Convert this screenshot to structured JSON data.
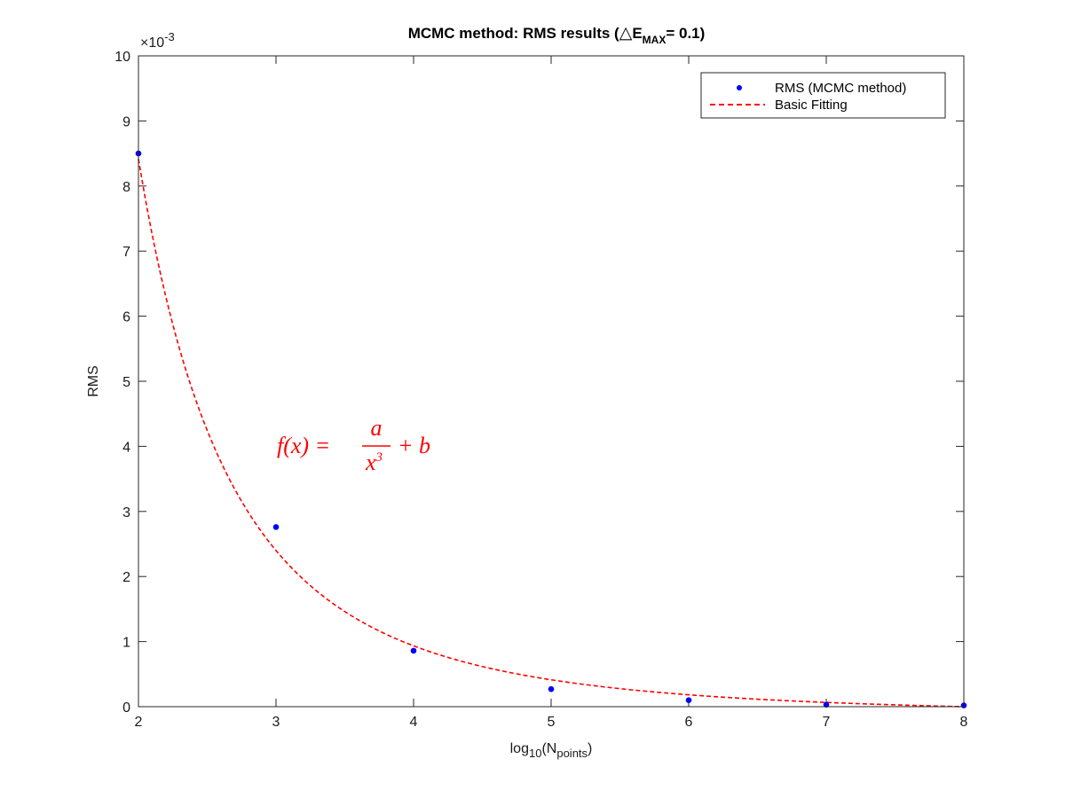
{
  "chart_data": {
    "type": "scatter",
    "title": {
      "prefix": "MCMC method: RMS results (",
      "symbol": "△",
      "main": "E",
      "sub": "MAX",
      "suffix": "= 0.1)"
    },
    "xlabel": {
      "main": "log",
      "sub1": "10",
      "mid": "(N",
      "sub2": "points",
      "end": ")"
    },
    "ylabel": "RMS",
    "exponent_label": {
      "base": "×10",
      "exp": "-3"
    },
    "xlim": [
      2,
      8
    ],
    "ylim": [
      0,
      0.01
    ],
    "xticks": [
      2,
      3,
      4,
      5,
      6,
      7,
      8
    ],
    "xtick_labels": [
      "2",
      "3",
      "4",
      "5",
      "6",
      "7",
      "8"
    ],
    "yticks": [
      0,
      0.001,
      0.002,
      0.003,
      0.004,
      0.005,
      0.006,
      0.007,
      0.008,
      0.009,
      0.01
    ],
    "ytick_labels": [
      "0",
      "1",
      "2",
      "3",
      "4",
      "5",
      "6",
      "7",
      "8",
      "9",
      "10"
    ],
    "grid": false,
    "legend_position": "top-right",
    "series": [
      {
        "name": "RMS (MCMC method)",
        "kind": "points",
        "color": "#0000ff",
        "x": [
          2,
          3,
          4,
          5,
          6,
          7,
          8
        ],
        "y": [
          0.0085,
          0.00276,
          0.00086,
          0.00027,
          0.0001,
          3e-05,
          2e-05
        ]
      },
      {
        "name": "Basic Fitting",
        "kind": "dashed-line",
        "color": "#ff0000",
        "model": "a/x^3 + b",
        "a": 0.0684,
        "b": -0.000134
      }
    ],
    "annotation": {
      "lhs": "f(x) = ",
      "numerator": "a",
      "denominator_base": "x",
      "denominator_exp": "3",
      "rhs": "+ b",
      "color": "#ff0000"
    }
  }
}
